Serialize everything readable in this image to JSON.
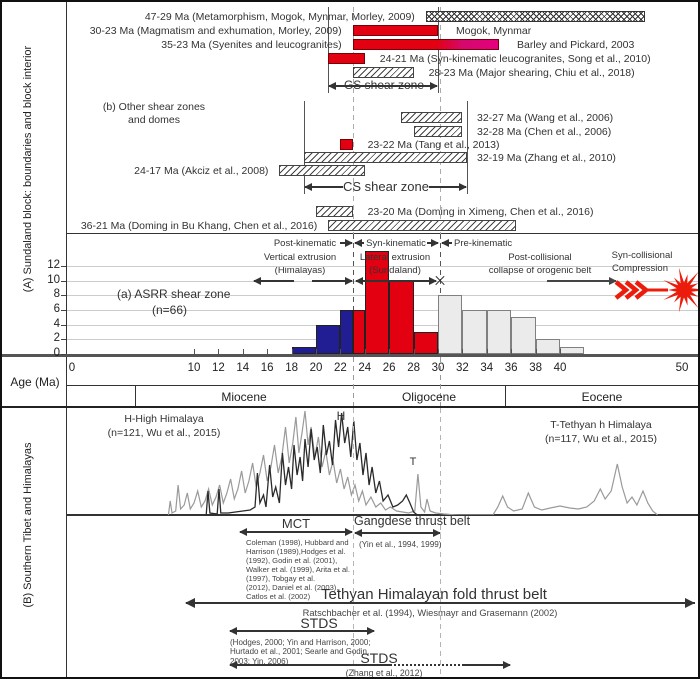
{
  "colors": {
    "red": "#e30011",
    "magenta": "#e6007e",
    "navy": "#211d92",
    "gray_bar": "#ebebeb",
    "gray_border": "#808080",
    "bar_border": "#333333",
    "star_red": "#ec1c0c"
  },
  "panelA": {
    "side_label": "(A) Sundaland block: boundaries and block interior",
    "section_b": [
      "(b) Other shear zones",
      "and domes"
    ],
    "gs_zone": {
      "label": "GS shear zone",
      "from": 21,
      "to": 30
    },
    "cs_zone": {
      "label": "CS shear zone",
      "from": 19,
      "to": 32.4
    },
    "kinematic": {
      "post": "Post-kinematic",
      "syn": "Syn-kinematic",
      "pre": "Pre-kinematic"
    },
    "phases": {
      "vertical": [
        "Vertical extrusion",
        "(Himalayas)"
      ],
      "lateral": [
        "Lateral extrusion",
        "(Sundaland)"
      ],
      "post_collisional": [
        "Post-collisional",
        "collapse of orogenic belt"
      ],
      "syn_collisional": [
        "Syn-collisional",
        "Compression"
      ]
    },
    "hist_title": [
      "(a) ASRR shear zone",
      "(n=66)"
    ]
  },
  "axis": {
    "label": "Age (Ma)",
    "ticks": [
      0,
      10,
      12,
      14,
      16,
      18,
      20,
      22,
      24,
      26,
      28,
      30,
      32,
      34,
      36,
      38,
      40,
      50
    ],
    "yticks": [
      0,
      2,
      4,
      6,
      8,
      10,
      12
    ],
    "epochs": [
      "Miocene",
      "Oligocene",
      "Eocene"
    ]
  },
  "panelB": {
    "side_label": "(B) Southern Tibet and Himalayas",
    "h_label": [
      "H-High Himalaya",
      "(n=121, Wu et al., 2015)"
    ],
    "t_label": [
      "T-Tethyan h Himalaya",
      "(n=117, Wu et al., 2015)"
    ],
    "h_mark": "H",
    "t_mark": "T",
    "mct": {
      "title": "MCT",
      "refs": [
        "Coleman (1998), Hubbard and",
        "Harrison (1989),Hodges et al.",
        "(1992), Godin et al. (2001),",
        "Walker et al. (1999), Arita et al.",
        " (1997), Tobgay et al.",
        "(2012), Daniel et al. (2003),",
        "Catlos et al. (2002)"
      ]
    },
    "gangdese": {
      "title": "Gangdese thrust belt",
      "ref": "(Yin et al., 1994, 1999)"
    },
    "tethyan": {
      "title": "Tethyan Himalayan fold thrust belt",
      "ref": "Ratschbacher et al. (1994), Wiesmayr and Grasemann (2002)"
    },
    "stds1": {
      "title": "STDS",
      "refs": [
        "(Hodges, 2000; Yin and Harrison, 2000;",
        "Hurtado et al., 2001; Searle and Godin,",
        "2003; Yin, 2006)"
      ]
    },
    "stds2": {
      "title": "STDS",
      "ref": "(Zhang et al., 2012)"
    }
  },
  "chart_data": [
    {
      "type": "bar",
      "title": "(a) ASRR shear zone",
      "n": 66,
      "xlabel": "Age (Ma)",
      "xlim": [
        0,
        50
      ],
      "ylim": [
        0,
        12
      ],
      "grid": true,
      "bins": [
        {
          "x0": 18,
          "x1": 20,
          "count": 1,
          "phase": "navy"
        },
        {
          "x0": 20,
          "x1": 22,
          "count": 4,
          "phase": "navy"
        },
        {
          "x0": 22,
          "x1": 23,
          "count": 6,
          "phase": "navy"
        },
        {
          "x0": 23,
          "x1": 24,
          "count": 6,
          "phase": "red"
        },
        {
          "x0": 24,
          "x1": 26,
          "count": 14,
          "phase": "red"
        },
        {
          "x0": 26,
          "x1": 28,
          "count": 10,
          "phase": "red"
        },
        {
          "x0": 28,
          "x1": 30,
          "count": 3,
          "phase": "red"
        },
        {
          "x0": 30,
          "x1": 32,
          "count": 8,
          "phase": "gray"
        },
        {
          "x0": 32,
          "x1": 34,
          "count": 6,
          "phase": "gray"
        },
        {
          "x0": 34,
          "x1": 36,
          "count": 6,
          "phase": "gray"
        },
        {
          "x0": 36,
          "x1": 38,
          "count": 5,
          "phase": "gray"
        },
        {
          "x0": 38,
          "x1": 40,
          "count": 2,
          "phase": "gray"
        },
        {
          "x0": 40,
          "x1": 42,
          "count": 1,
          "phase": "gray"
        }
      ]
    },
    {
      "type": "line",
      "name": "H-High Himalaya",
      "n": 121,
      "points": [
        [
          11,
          0
        ],
        [
          11.15,
          24
        ],
        [
          11.3,
          2
        ],
        [
          11.9,
          1
        ],
        [
          12.05,
          26
        ],
        [
          12.2,
          2
        ],
        [
          12.8,
          2
        ],
        [
          13.4,
          3
        ],
        [
          14,
          4
        ],
        [
          14.6,
          5
        ],
        [
          15,
          8
        ],
        [
          15.2,
          42
        ],
        [
          15.4,
          12
        ],
        [
          15.7,
          20
        ],
        [
          15.9,
          8
        ],
        [
          16.2,
          50
        ],
        [
          16.45,
          18
        ],
        [
          16.7,
          28
        ],
        [
          17,
          12
        ],
        [
          17.25,
          62
        ],
        [
          17.5,
          30
        ],
        [
          17.75,
          48
        ],
        [
          18,
          26
        ],
        [
          18.2,
          70
        ],
        [
          18.45,
          40
        ],
        [
          18.7,
          58
        ],
        [
          18.9,
          34
        ],
        [
          19.1,
          76
        ],
        [
          19.35,
          48
        ],
        [
          19.6,
          86
        ],
        [
          19.85,
          55
        ],
        [
          20.1,
          68
        ],
        [
          20.35,
          42
        ],
        [
          20.6,
          90
        ],
        [
          20.85,
          60
        ],
        [
          21.1,
          74
        ],
        [
          21.35,
          50
        ],
        [
          21.6,
          95
        ],
        [
          21.85,
          68
        ],
        [
          22.1,
          102
        ],
        [
          22.35,
          72
        ],
        [
          22.6,
          88
        ],
        [
          22.85,
          58
        ],
        [
          23.1,
          94
        ],
        [
          23.35,
          55
        ],
        [
          23.6,
          72
        ],
        [
          23.85,
          40
        ],
        [
          24.1,
          62
        ],
        [
          24.35,
          30
        ],
        [
          24.6,
          48
        ],
        [
          24.9,
          22
        ],
        [
          25.2,
          34
        ],
        [
          25.5,
          14
        ],
        [
          25.9,
          20
        ],
        [
          26.3,
          8
        ],
        [
          26.7,
          10
        ],
        [
          27.1,
          14
        ],
        [
          27.4,
          20
        ],
        [
          27.7,
          12
        ],
        [
          28,
          3
        ],
        [
          28.3,
          0
        ]
      ]
    },
    {
      "type": "line",
      "name": "T-Tethyan Himalaya",
      "n": 117,
      "points": [
        [
          7.9,
          0
        ],
        [
          8.05,
          14
        ],
        [
          8.2,
          2
        ],
        [
          8.5,
          4
        ],
        [
          8.7,
          30
        ],
        [
          8.9,
          6
        ],
        [
          9.2,
          10
        ],
        [
          9.45,
          22
        ],
        [
          9.7,
          6
        ],
        [
          10,
          12
        ],
        [
          10.3,
          24
        ],
        [
          10.6,
          8
        ],
        [
          10.9,
          14
        ],
        [
          11.2,
          26
        ],
        [
          11.5,
          10
        ],
        [
          11.8,
          18
        ],
        [
          12.1,
          30
        ],
        [
          12.4,
          12
        ],
        [
          12.7,
          22
        ],
        [
          13,
          36
        ],
        [
          13.3,
          16
        ],
        [
          13.6,
          26
        ],
        [
          13.9,
          44
        ],
        [
          14.2,
          22
        ],
        [
          14.5,
          34
        ],
        [
          14.8,
          52
        ],
        [
          15.1,
          28
        ],
        [
          15.4,
          42
        ],
        [
          15.7,
          60
        ],
        [
          16,
          34
        ],
        [
          16.3,
          48
        ],
        [
          16.6,
          70
        ],
        [
          16.9,
          42
        ],
        [
          17.2,
          58
        ],
        [
          17.5,
          88
        ],
        [
          17.8,
          52
        ],
        [
          18.1,
          72
        ],
        [
          18.35,
          98
        ],
        [
          18.6,
          62
        ],
        [
          18.85,
          82
        ],
        [
          19.1,
          104
        ],
        [
          19.35,
          70
        ],
        [
          19.6,
          88
        ],
        [
          19.9,
          58
        ],
        [
          20.2,
          78
        ],
        [
          20.5,
          48
        ],
        [
          20.8,
          64
        ],
        [
          21.1,
          40
        ],
        [
          21.4,
          54
        ],
        [
          21.7,
          32
        ],
        [
          22,
          46
        ],
        [
          22.3,
          26
        ],
        [
          22.6,
          38
        ],
        [
          22.9,
          20
        ],
        [
          23.2,
          30
        ],
        [
          23.5,
          14
        ],
        [
          23.8,
          24
        ],
        [
          24.1,
          10
        ],
        [
          24.5,
          18
        ],
        [
          24.9,
          8
        ],
        [
          25.3,
          12
        ],
        [
          25.7,
          5
        ],
        [
          26.1,
          8
        ],
        [
          26.6,
          4
        ],
        [
          27.1,
          3
        ],
        [
          27.6,
          2
        ],
        [
          28.1,
          4
        ],
        [
          28.35,
          41
        ],
        [
          28.6,
          8
        ],
        [
          28.9,
          3
        ],
        [
          29.1,
          16
        ],
        [
          29.35,
          4
        ],
        [
          29.8,
          2
        ],
        [
          30.5,
          1
        ],
        [
          31.5,
          0
        ],
        [
          34.5,
          0
        ],
        [
          34.9,
          8
        ],
        [
          35.3,
          19
        ],
        [
          35.7,
          8
        ],
        [
          36.2,
          4
        ],
        [
          36.9,
          6
        ],
        [
          37.4,
          22
        ],
        [
          37.9,
          8
        ],
        [
          38.5,
          5
        ],
        [
          39.2,
          7
        ],
        [
          40,
          9
        ],
        [
          40.8,
          7
        ],
        [
          41.5,
          6
        ],
        [
          42.2,
          8
        ],
        [
          42.8,
          14
        ],
        [
          43.3,
          26
        ],
        [
          43.7,
          16
        ],
        [
          44.2,
          24
        ],
        [
          44.7,
          51
        ],
        [
          45.1,
          28
        ],
        [
          45.5,
          12
        ],
        [
          45.9,
          18
        ],
        [
          46.3,
          10
        ],
        [
          46.8,
          24
        ],
        [
          47.2,
          12
        ],
        [
          47.6,
          4
        ],
        [
          48,
          0
        ]
      ]
    },
    {
      "type": "table",
      "name": "age-ranges",
      "rows": [
        {
          "from": 29,
          "to": 47,
          "pattern": "crosshatch",
          "side": "left",
          "label": "47-29 Ma (Metamorphism, Mogok, Mynmar, Morley, 2009)"
        },
        {
          "from": 23,
          "to": 30,
          "pattern": "red",
          "side": "left",
          "label": "30-23 Ma (Magmatism and exhumation, Morley, 2009)",
          "after": "Mogok, Mynmar"
        },
        {
          "from": 23,
          "to": 35,
          "pattern": "red-magenta",
          "side": "left",
          "label": "35-23 Ma (Syenites and leucogranites)",
          "after": "Barley and Pickard, 2003"
        },
        {
          "from": 21,
          "to": 24,
          "pattern": "red",
          "side": "right",
          "label": "24-21 Ma (Syn-kinematic leucogranites, Song et al., 2010)"
        },
        {
          "from": 23,
          "to": 28,
          "pattern": "hatch",
          "side": "right",
          "label": "28-23 Ma (Major shearing, Chiu et al., 2018)"
        },
        {
          "from": 27,
          "to": 32,
          "pattern": "hatch",
          "side": "right",
          "label": "32-27 Ma (Wang et al., 2006)",
          "textX": 475
        },
        {
          "from": 28,
          "to": 32,
          "pattern": "hatch",
          "side": "right",
          "label": "32-28 Ma (Chen et al., 2006)",
          "textX": 475
        },
        {
          "from": 22,
          "to": 23,
          "pattern": "red",
          "side": "right",
          "label": "23-22 Ma (Tang et al., 2013)"
        },
        {
          "from": 19,
          "to": 32.4,
          "pattern": "hatch",
          "side": "right",
          "label": "32-19 Ma (Zhang et al., 2010)",
          "textX": 475
        },
        {
          "from": 17,
          "to": 24,
          "pattern": "hatch",
          "side": "left",
          "label": "24-17 Ma (Akciz et al., 2008)"
        },
        {
          "from": 20,
          "to": 23,
          "pattern": "hatch",
          "side": "right",
          "label": "23-20 Ma (Doming in Ximeng, Chen et al., 2016)"
        },
        {
          "from": 21,
          "to": 36.4,
          "pattern": "hatch",
          "side": "left",
          "label": "36-21 Ma (Doming in Bu Khang, Chen et al., 2016)"
        }
      ]
    }
  ]
}
